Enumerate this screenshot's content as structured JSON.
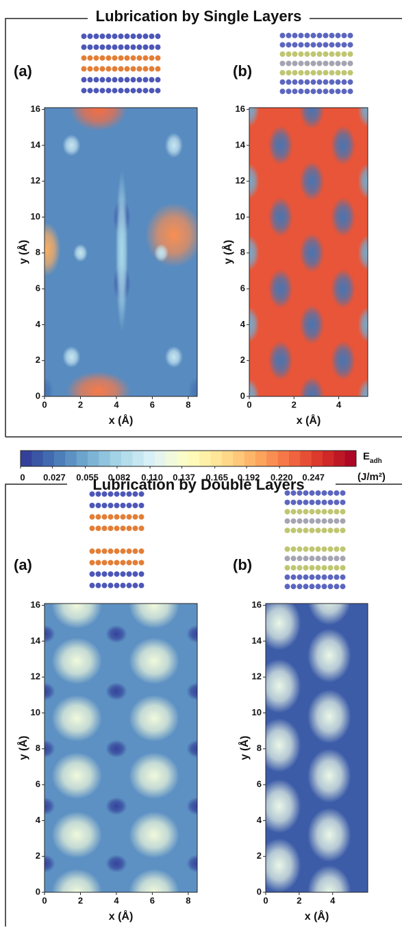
{
  "sections": [
    {
      "title": "Lubrication by Single Layers",
      "panels": [
        {
          "label": "(a)",
          "xlabel": "x (Å)",
          "ylabel": "y (Å)",
          "xlim": [
            0,
            8.5
          ],
          "ylim": [
            0,
            16.1
          ],
          "xticks": [
            0,
            2,
            4,
            6,
            8
          ],
          "yticks": [
            0,
            2,
            4,
            6,
            8,
            10,
            12,
            14,
            16
          ]
        },
        {
          "label": "(b)",
          "xlabel": "x (Å)",
          "ylabel": "y (Å)",
          "xlim": [
            0,
            5.3
          ],
          "ylim": [
            0,
            16.1
          ],
          "xticks": [
            0,
            2,
            4
          ],
          "yticks": [
            0,
            2,
            4,
            6,
            8,
            10,
            12,
            14,
            16
          ]
        }
      ]
    },
    {
      "title": "Lubrication by Double Layers",
      "panels": [
        {
          "label": "(a)",
          "xlabel": "x (Å)",
          "ylabel": "y (Å)",
          "xlim": [
            0,
            8.5
          ],
          "ylim": [
            0,
            16.1
          ],
          "xticks": [
            0,
            2,
            4,
            6,
            8
          ],
          "yticks": [
            0,
            2,
            4,
            6,
            8,
            10,
            12,
            14,
            16
          ]
        },
        {
          "label": "(b)",
          "xlabel": "x (Å)",
          "ylabel": "y (Å)",
          "xlim": [
            0,
            6.1
          ],
          "ylim": [
            0,
            16.1
          ],
          "xticks": [
            0,
            2,
            4
          ],
          "yticks": [
            0,
            2,
            4,
            6,
            8,
            10,
            12,
            14,
            16
          ]
        }
      ]
    }
  ],
  "colorbar": {
    "label": "E",
    "label_subscript": "adh",
    "unit": "(J/m²)",
    "lim": [
      0,
      0.285
    ],
    "ticks": [
      0,
      0.027,
      0.055,
      0.082,
      {
        "value": 0.11,
        "label": "0.110"
      },
      0.137,
      0.165,
      0.192,
      {
        "value": 0.22,
        "label": "0.220"
      },
      0.247
    ]
  }
}
